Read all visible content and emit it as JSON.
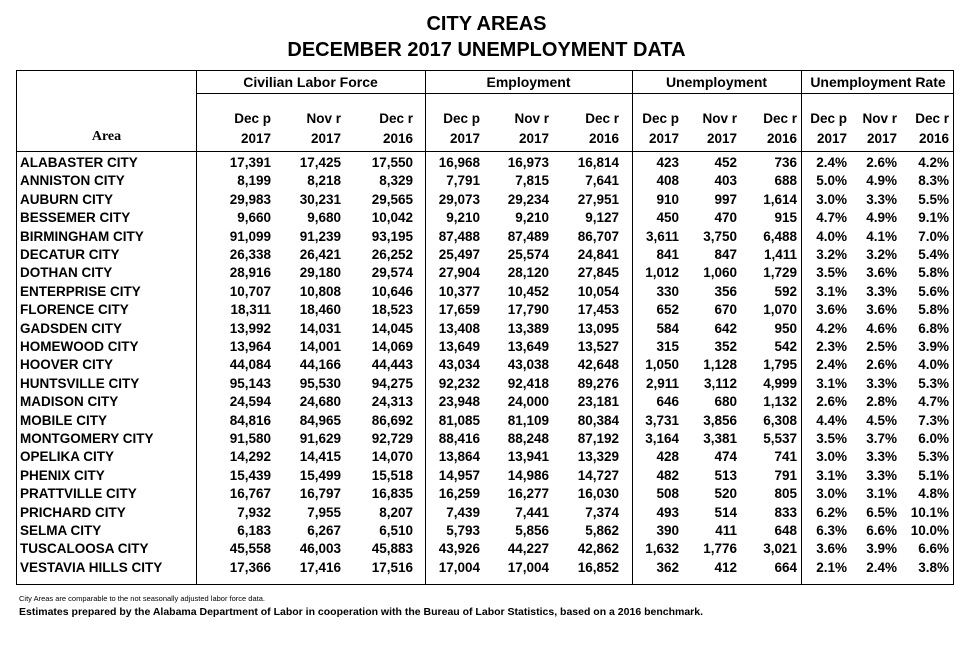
{
  "title_line1": "CITY AREAS",
  "title_line2": "DECEMBER 2017  UNEMPLOYMENT DATA",
  "groups": [
    "Civilian Labor Force",
    "Employment",
    "Unemployment",
    "Unemployment Rate"
  ],
  "area_header": "Area",
  "col_headers": [
    {
      "l1": "Dec p",
      "l2": "2017"
    },
    {
      "l1": "Nov r",
      "l2": "2017"
    },
    {
      "l1": "Dec r",
      "l2": "2016"
    },
    {
      "l1": "Dec p",
      "l2": "2017"
    },
    {
      "l1": "Nov r",
      "l2": "2017"
    },
    {
      "l1": "Dec r",
      "l2": "2016"
    },
    {
      "l1": "Dec p",
      "l2": "2017"
    },
    {
      "l1": "Nov r",
      "l2": "2017"
    },
    {
      "l1": "Dec r",
      "l2": "2016"
    },
    {
      "l1": "Dec p",
      "l2": "2017"
    },
    {
      "l1": "Nov r",
      "l2": "2017"
    },
    {
      "l1": "Dec r",
      "l2": "2016"
    }
  ],
  "rows": [
    {
      "area": "ALABASTER CITY",
      "v": [
        "17,391",
        "17,425",
        "17,550",
        "16,968",
        "16,973",
        "16,814",
        "423",
        "452",
        "736",
        "2.4%",
        "2.6%",
        "4.2%"
      ]
    },
    {
      "area": "ANNISTON CITY",
      "v": [
        "8,199",
        "8,218",
        "8,329",
        "7,791",
        "7,815",
        "7,641",
        "408",
        "403",
        "688",
        "5.0%",
        "4.9%",
        "8.3%"
      ]
    },
    {
      "area": "AUBURN CITY",
      "v": [
        "29,983",
        "30,231",
        "29,565",
        "29,073",
        "29,234",
        "27,951",
        "910",
        "997",
        "1,614",
        "3.0%",
        "3.3%",
        "5.5%"
      ]
    },
    {
      "area": "BESSEMER CITY",
      "v": [
        "9,660",
        "9,680",
        "10,042",
        "9,210",
        "9,210",
        "9,127",
        "450",
        "470",
        "915",
        "4.7%",
        "4.9%",
        "9.1%"
      ]
    },
    {
      "area": "BIRMINGHAM CITY",
      "v": [
        "91,099",
        "91,239",
        "93,195",
        "87,488",
        "87,489",
        "86,707",
        "3,611",
        "3,750",
        "6,488",
        "4.0%",
        "4.1%",
        "7.0%"
      ]
    },
    {
      "area": "DECATUR CITY",
      "v": [
        "26,338",
        "26,421",
        "26,252",
        "25,497",
        "25,574",
        "24,841",
        "841",
        "847",
        "1,411",
        "3.2%",
        "3.2%",
        "5.4%"
      ]
    },
    {
      "area": "DOTHAN CITY",
      "v": [
        "28,916",
        "29,180",
        "29,574",
        "27,904",
        "28,120",
        "27,845",
        "1,012",
        "1,060",
        "1,729",
        "3.5%",
        "3.6%",
        "5.8%"
      ]
    },
    {
      "area": "ENTERPRISE CITY",
      "v": [
        "10,707",
        "10,808",
        "10,646",
        "10,377",
        "10,452",
        "10,054",
        "330",
        "356",
        "592",
        "3.1%",
        "3.3%",
        "5.6%"
      ]
    },
    {
      "area": "FLORENCE CITY",
      "v": [
        "18,311",
        "18,460",
        "18,523",
        "17,659",
        "17,790",
        "17,453",
        "652",
        "670",
        "1,070",
        "3.6%",
        "3.6%",
        "5.8%"
      ]
    },
    {
      "area": "GADSDEN CITY",
      "v": [
        "13,992",
        "14,031",
        "14,045",
        "13,408",
        "13,389",
        "13,095",
        "584",
        "642",
        "950",
        "4.2%",
        "4.6%",
        "6.8%"
      ]
    },
    {
      "area": "HOMEWOOD CITY",
      "v": [
        "13,964",
        "14,001",
        "14,069",
        "13,649",
        "13,649",
        "13,527",
        "315",
        "352",
        "542",
        "2.3%",
        "2.5%",
        "3.9%"
      ]
    },
    {
      "area": "HOOVER CITY",
      "v": [
        "44,084",
        "44,166",
        "44,443",
        "43,034",
        "43,038",
        "42,648",
        "1,050",
        "1,128",
        "1,795",
        "2.4%",
        "2.6%",
        "4.0%"
      ]
    },
    {
      "area": "HUNTSVILLE CITY",
      "v": [
        "95,143",
        "95,530",
        "94,275",
        "92,232",
        "92,418",
        "89,276",
        "2,911",
        "3,112",
        "4,999",
        "3.1%",
        "3.3%",
        "5.3%"
      ]
    },
    {
      "area": "MADISON CITY",
      "v": [
        "24,594",
        "24,680",
        "24,313",
        "23,948",
        "24,000",
        "23,181",
        "646",
        "680",
        "1,132",
        "2.6%",
        "2.8%",
        "4.7%"
      ]
    },
    {
      "area": "MOBILE CITY",
      "v": [
        "84,816",
        "84,965",
        "86,692",
        "81,085",
        "81,109",
        "80,384",
        "3,731",
        "3,856",
        "6,308",
        "4.4%",
        "4.5%",
        "7.3%"
      ]
    },
    {
      "area": "MONTGOMERY CITY",
      "v": [
        "91,580",
        "91,629",
        "92,729",
        "88,416",
        "88,248",
        "87,192",
        "3,164",
        "3,381",
        "5,537",
        "3.5%",
        "3.7%",
        "6.0%"
      ]
    },
    {
      "area": "OPELIKA CITY",
      "v": [
        "14,292",
        "14,415",
        "14,070",
        "13,864",
        "13,941",
        "13,329",
        "428",
        "474",
        "741",
        "3.0%",
        "3.3%",
        "5.3%"
      ]
    },
    {
      "area": "PHENIX CITY",
      "v": [
        "15,439",
        "15,499",
        "15,518",
        "14,957",
        "14,986",
        "14,727",
        "482",
        "513",
        "791",
        "3.1%",
        "3.3%",
        "5.1%"
      ]
    },
    {
      "area": "PRATTVILLE CITY",
      "v": [
        "16,767",
        "16,797",
        "16,835",
        "16,259",
        "16,277",
        "16,030",
        "508",
        "520",
        "805",
        "3.0%",
        "3.1%",
        "4.8%"
      ]
    },
    {
      "area": "PRICHARD CITY",
      "v": [
        "7,932",
        "7,955",
        "8,207",
        "7,439",
        "7,441",
        "7,374",
        "493",
        "514",
        "833",
        "6.2%",
        "6.5%",
        "10.1%"
      ]
    },
    {
      "area": "SELMA CITY",
      "v": [
        "6,183",
        "6,267",
        "6,510",
        "5,793",
        "5,856",
        "5,862",
        "390",
        "411",
        "648",
        "6.3%",
        "6.6%",
        "10.0%"
      ]
    },
    {
      "area": "TUSCALOOSA CITY",
      "v": [
        "45,558",
        "46,003",
        "45,883",
        "43,926",
        "44,227",
        "42,862",
        "1,632",
        "1,776",
        "3,021",
        "3.6%",
        "3.9%",
        "6.6%"
      ]
    },
    {
      "area": "VESTAVIA HILLS CITY",
      "v": [
        "17,366",
        "17,416",
        "17,516",
        "17,004",
        "17,004",
        "16,852",
        "362",
        "412",
        "664",
        "2.1%",
        "2.4%",
        "3.8%"
      ]
    }
  ],
  "footnote_small": "City Areas are comparable to the not seasonally adjusted labor force data.",
  "footnote_main": "Estimates prepared by the Alabama Department of Labor in cooperation with the Bureau of Labor Statistics, based on a 2016  benchmark."
}
